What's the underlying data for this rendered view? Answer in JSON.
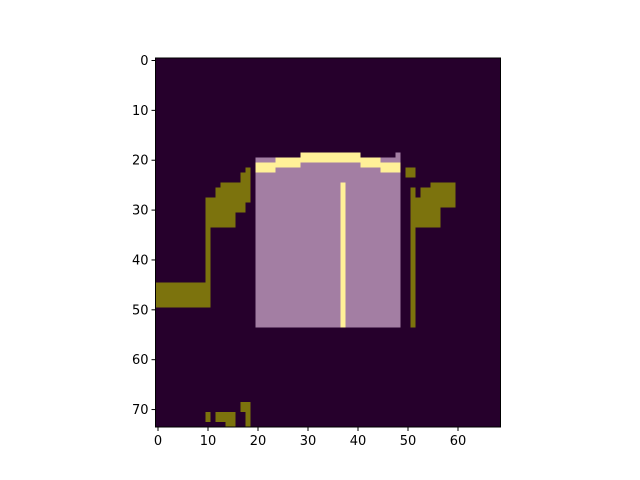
{
  "chart_data": {
    "type": "heatmap",
    "title": "",
    "xlabel": "",
    "ylabel": "",
    "grid": false,
    "xlim": [
      -0.5,
      68.5
    ],
    "ylim": [
      73.5,
      -0.5
    ],
    "x_ticks": [
      0,
      10,
      20,
      30,
      40,
      50,
      60
    ],
    "y_ticks": [
      0,
      10,
      20,
      30,
      40,
      50,
      60,
      70
    ],
    "colors": {
      "background": "#26002c",
      "garment": "#a37ea3",
      "highlight": "#fff098",
      "accent": "#7c730d"
    },
    "regions": [
      {
        "class": "garment",
        "x0": 20,
        "x1": 48,
        "y0": 20,
        "y1": 53
      },
      {
        "class": "garment",
        "x0": 48,
        "x1": 48,
        "y0": 19,
        "y1": 20
      },
      {
        "class": "highlight",
        "x0": 20,
        "x1": 23,
        "y0": 21,
        "y1": 22
      },
      {
        "class": "highlight",
        "x0": 24,
        "x1": 28,
        "y0": 20,
        "y1": 21
      },
      {
        "class": "highlight",
        "x0": 29,
        "x1": 40,
        "y0": 19,
        "y1": 20
      },
      {
        "class": "highlight",
        "x0": 41,
        "x1": 44,
        "y0": 20,
        "y1": 21
      },
      {
        "class": "highlight",
        "x0": 45,
        "x1": 48,
        "y0": 21,
        "y1": 22
      },
      {
        "class": "highlight",
        "x0": 37,
        "x1": 37,
        "y0": 25,
        "y1": 53
      },
      {
        "class": "accent",
        "x0": 0,
        "x1": 10,
        "y0": 45,
        "y1": 49
      },
      {
        "class": "accent",
        "x0": 10,
        "x1": 10,
        "y0": 28,
        "y1": 45
      },
      {
        "class": "accent",
        "x0": 11,
        "x1": 15,
        "y0": 28,
        "y1": 33
      },
      {
        "class": "accent",
        "x0": 12,
        "x1": 17,
        "y0": 26,
        "y1": 30
      },
      {
        "class": "accent",
        "x0": 13,
        "x1": 18,
        "y0": 25,
        "y1": 28
      },
      {
        "class": "accent",
        "x0": 17,
        "x1": 17,
        "y0": 23,
        "y1": 24
      },
      {
        "class": "accent",
        "x0": 18,
        "x1": 18,
        "y0": 22,
        "y1": 24
      },
      {
        "class": "accent",
        "x0": 50,
        "x1": 51,
        "y0": 22,
        "y1": 23
      },
      {
        "class": "accent",
        "x0": 51,
        "x1": 51,
        "y0": 26,
        "y1": 53
      },
      {
        "class": "accent",
        "x0": 52,
        "x1": 56,
        "y0": 28,
        "y1": 33
      },
      {
        "class": "accent",
        "x0": 53,
        "x1": 59,
        "y0": 26,
        "y1": 29
      },
      {
        "class": "accent",
        "x0": 55,
        "x1": 59,
        "y0": 25,
        "y1": 28
      },
      {
        "class": "accent",
        "x0": 10,
        "x1": 10,
        "y0": 71,
        "y1": 72
      },
      {
        "class": "accent",
        "x0": 12,
        "x1": 15,
        "y0": 71,
        "y1": 72
      },
      {
        "class": "accent",
        "x0": 14,
        "x1": 15,
        "y0": 72,
        "y1": 73
      },
      {
        "class": "accent",
        "x0": 17,
        "x1": 18,
        "y0": 69,
        "y1": 70
      },
      {
        "class": "accent",
        "x0": 18,
        "x1": 18,
        "y0": 70,
        "y1": 73
      }
    ]
  }
}
